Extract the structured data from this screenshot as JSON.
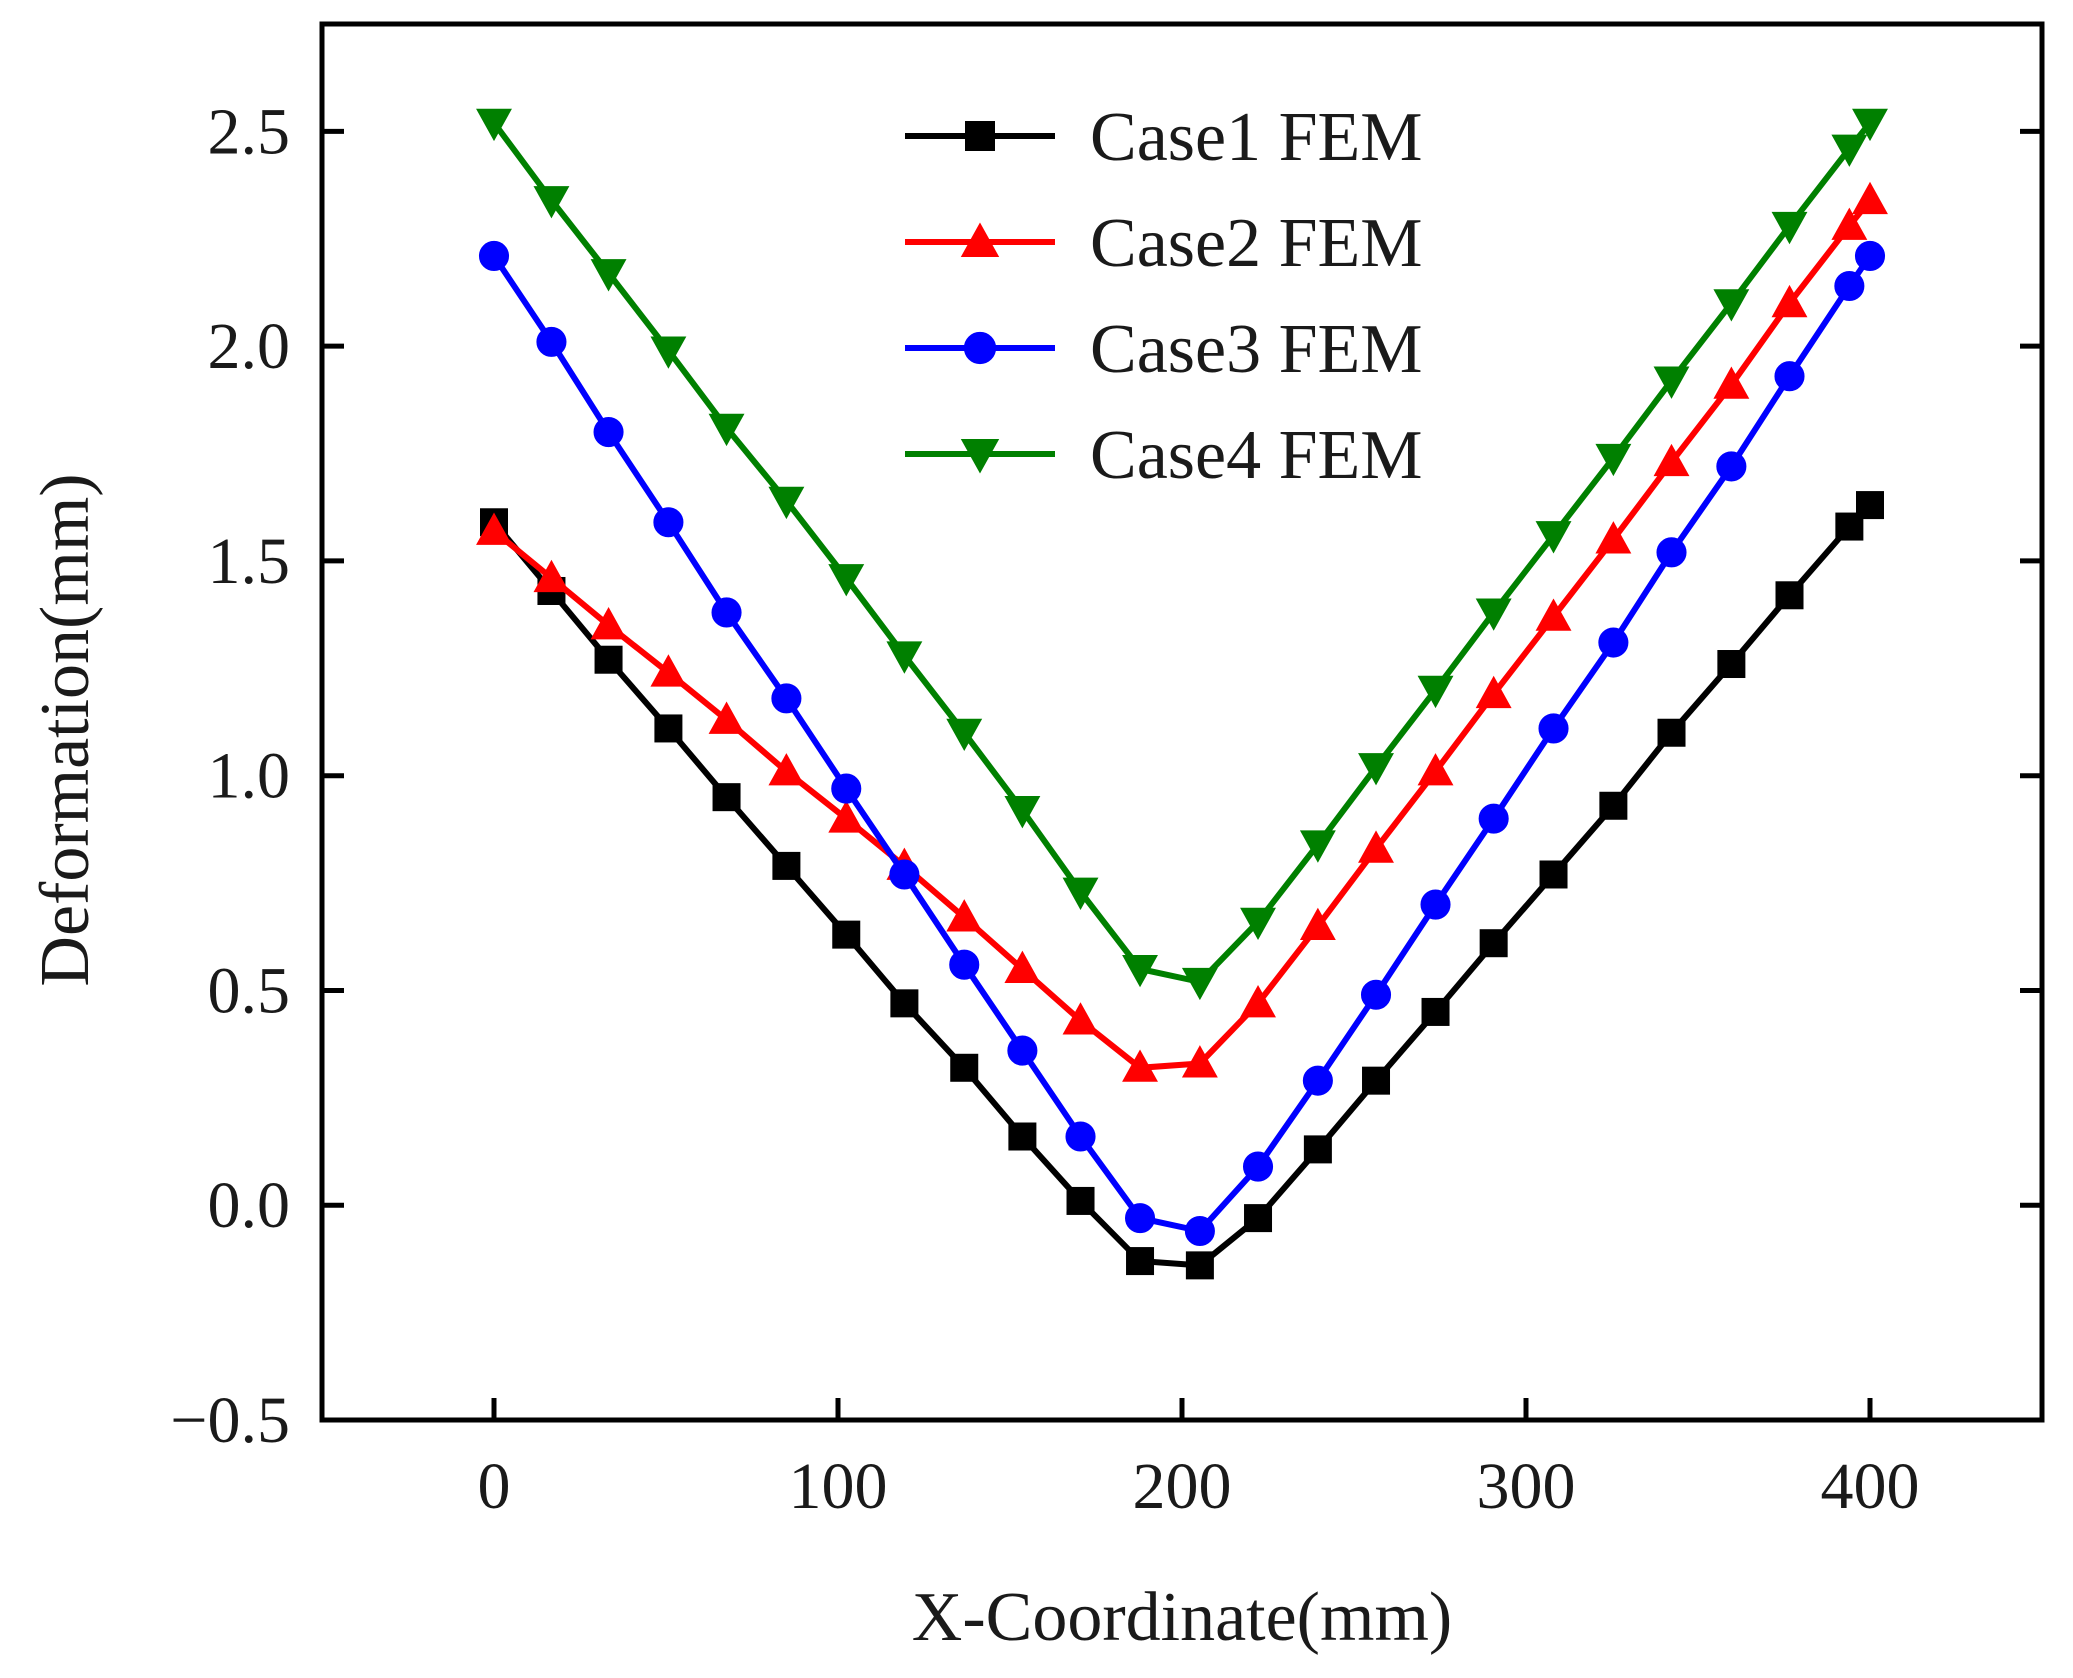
{
  "chart_data": {
    "type": "line",
    "title": "",
    "xlabel": "X-Coordinate(mm)",
    "ylabel": "Deformation(mm)",
    "xlim": [
      -50,
      450
    ],
    "ylim": [
      -0.5,
      2.75
    ],
    "xticks": [
      0,
      100,
      200,
      300,
      400
    ],
    "yticks": [
      -0.5,
      0.0,
      0.5,
      1.0,
      1.5,
      2.0,
      2.5
    ],
    "xtick_labels": [
      "0",
      "100",
      "200",
      "300",
      "400"
    ],
    "ytick_labels": [
      "−0.5",
      "0.0",
      "0.5",
      "1.0",
      "1.5",
      "2.0",
      "2.5"
    ],
    "grid": false,
    "legend_position": "top-center",
    "x": [
      0,
      16.7,
      33.3,
      50.7,
      67.6,
      85.0,
      102.4,
      119.3,
      136.7,
      153.6,
      170.5,
      187.8,
      205.2,
      222.1,
      239.5,
      256.4,
      273.7,
      290.6,
      308.0,
      325.4,
      342.3,
      359.7,
      376.6,
      394.0,
      400.0
    ],
    "series": [
      {
        "name": "Case1 FEM",
        "color": "#000000",
        "marker": "square",
        "values": [
          1.59,
          1.43,
          1.27,
          1.11,
          0.95,
          0.79,
          0.63,
          0.47,
          0.32,
          0.16,
          0.01,
          -0.13,
          -0.14,
          -0.03,
          0.13,
          0.29,
          0.45,
          0.61,
          0.77,
          0.93,
          1.1,
          1.26,
          1.42,
          1.58,
          1.63
        ]
      },
      {
        "name": "Case2 FEM",
        "color": "#ff0000",
        "marker": "triangle-up",
        "values": [
          1.57,
          1.46,
          1.35,
          1.24,
          1.13,
          1.01,
          0.9,
          0.79,
          0.67,
          0.55,
          0.43,
          0.32,
          0.33,
          0.47,
          0.65,
          0.83,
          1.01,
          1.19,
          1.37,
          1.55,
          1.73,
          1.91,
          2.1,
          2.28,
          2.34
        ]
      },
      {
        "name": "Case3 FEM",
        "color": "#0000ff",
        "marker": "circle",
        "values": [
          2.21,
          2.01,
          1.8,
          1.59,
          1.38,
          1.18,
          0.97,
          0.77,
          0.56,
          0.36,
          0.16,
          -0.03,
          -0.06,
          0.09,
          0.29,
          0.49,
          0.7,
          0.9,
          1.11,
          1.31,
          1.52,
          1.72,
          1.93,
          2.14,
          2.21
        ]
      },
      {
        "name": "Case4 FEM",
        "color": "#008000",
        "marker": "triangle-down",
        "values": [
          2.52,
          2.34,
          2.17,
          1.99,
          1.81,
          1.64,
          1.46,
          1.28,
          1.1,
          0.92,
          0.73,
          0.55,
          0.52,
          0.66,
          0.84,
          1.02,
          1.2,
          1.38,
          1.56,
          1.74,
          1.92,
          2.1,
          2.28,
          2.46,
          2.52
        ]
      }
    ]
  }
}
